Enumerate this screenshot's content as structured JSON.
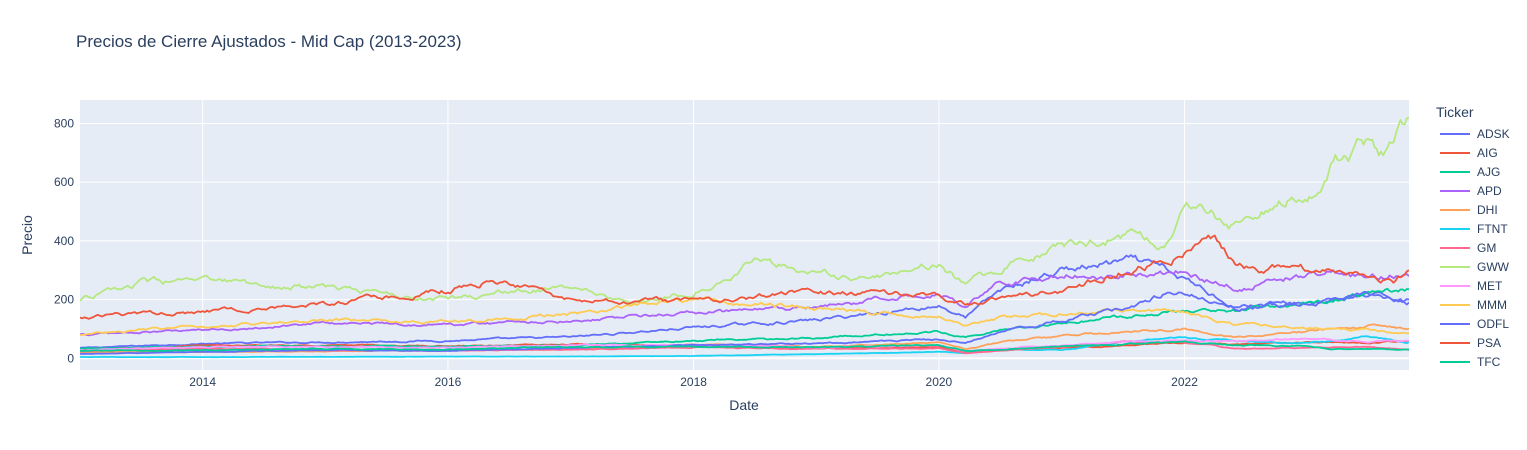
{
  "chart_data": {
    "type": "line",
    "title": "Precios de Cierre Ajustados - Mid Cap (2013-2023)",
    "xlabel": "Date",
    "ylabel": "Precio",
    "xlim": [
      "2013-01-01",
      "2023-10-31"
    ],
    "ylim": [
      -40,
      880
    ],
    "x_ticks": [
      {
        "date": "2014-01-01",
        "label": "2014"
      },
      {
        "date": "2016-01-01",
        "label": "2016"
      },
      {
        "date": "2018-01-01",
        "label": "2018"
      },
      {
        "date": "2020-01-01",
        "label": "2020"
      },
      {
        "date": "2022-01-01",
        "label": "2022"
      }
    ],
    "y_ticks": [
      0,
      200,
      400,
      600,
      800
    ],
    "grid": true,
    "legend_title": "Ticker",
    "legend_position": "right",
    "series": [
      {
        "name": "ADSK",
        "color": "#636efa",
        "x": [
          "2013-01-01",
          "2014-01-01",
          "2015-01-01",
          "2016-01-01",
          "2017-01-01",
          "2018-01-01",
          "2019-01-01",
          "2020-01-01",
          "2020-03-20",
          "2020-07-01",
          "2021-01-01",
          "2021-08-01",
          "2021-11-01",
          "2022-06-01",
          "2023-01-01",
          "2023-07-01",
          "2023-10-31"
        ],
        "y": [
          35,
          50,
          55,
          60,
          72,
          105,
          130,
          180,
          140,
          230,
          300,
          330,
          300,
          180,
          190,
          210,
          200
        ]
      },
      {
        "name": "AIG",
        "color": "#ef553b",
        "x": [
          "2013-01-01",
          "2014-01-01",
          "2015-01-01",
          "2016-01-01",
          "2017-01-01",
          "2018-01-01",
          "2019-01-01",
          "2020-01-01",
          "2020-03-20",
          "2020-07-01",
          "2021-01-01",
          "2021-07-01",
          "2022-01-01",
          "2022-06-01",
          "2023-01-01",
          "2023-07-01",
          "2023-10-31"
        ],
        "y": [
          30,
          42,
          45,
          42,
          48,
          46,
          34,
          40,
          18,
          26,
          35,
          42,
          52,
          45,
          55,
          52,
          60
        ]
      },
      {
        "name": "AJG",
        "color": "#00cc96",
        "x": [
          "2013-01-01",
          "2014-01-01",
          "2015-01-01",
          "2016-01-01",
          "2017-01-01",
          "2018-01-01",
          "2019-01-01",
          "2020-01-01",
          "2020-03-20",
          "2020-07-01",
          "2021-01-01",
          "2021-07-01",
          "2022-01-01",
          "2022-06-01",
          "2023-01-01",
          "2023-07-01",
          "2023-10-31"
        ],
        "y": [
          32,
          40,
          42,
          40,
          45,
          58,
          70,
          90,
          75,
          95,
          120,
          140,
          165,
          160,
          190,
          215,
          235
        ]
      },
      {
        "name": "APD",
        "color": "#ab63fa",
        "x": [
          "2013-01-01",
          "2014-01-01",
          "2015-01-01",
          "2016-01-01",
          "2017-01-01",
          "2018-01-01",
          "2019-01-01",
          "2020-01-01",
          "2020-03-20",
          "2020-07-01",
          "2021-01-01",
          "2021-07-01",
          "2022-01-01",
          "2022-06-01",
          "2023-01-01",
          "2023-07-01",
          "2023-10-31"
        ],
        "y": [
          80,
          95,
          120,
          115,
          130,
          155,
          170,
          230,
          180,
          260,
          280,
          285,
          300,
          240,
          290,
          285,
          280
        ]
      },
      {
        "name": "DHI",
        "color": "#ffa15a",
        "x": [
          "2013-01-01",
          "2014-01-01",
          "2015-01-01",
          "2016-01-01",
          "2017-01-01",
          "2018-01-01",
          "2019-01-01",
          "2020-01-01",
          "2020-03-20",
          "2020-07-01",
          "2021-01-01",
          "2021-07-01",
          "2022-01-01",
          "2022-06-01",
          "2023-01-01",
          "2023-07-01",
          "2023-10-31"
        ],
        "y": [
          20,
          22,
          24,
          28,
          30,
          48,
          40,
          55,
          32,
          55,
          75,
          90,
          100,
          70,
          90,
          110,
          100
        ]
      },
      {
        "name": "FTNT",
        "color": "#19d3f3",
        "x": [
          "2013-01-01",
          "2014-01-01",
          "2015-01-01",
          "2016-01-01",
          "2017-01-01",
          "2018-01-01",
          "2019-01-01",
          "2020-01-01",
          "2020-03-20",
          "2020-07-01",
          "2021-01-01",
          "2021-07-01",
          "2021-12-01",
          "2022-06-01",
          "2023-01-01",
          "2023-07-01",
          "2023-10-31"
        ],
        "y": [
          4,
          4,
          5,
          6,
          6,
          8,
          14,
          22,
          17,
          28,
          30,
          55,
          70,
          58,
          50,
          72,
          55
        ]
      },
      {
        "name": "GM",
        "color": "#ff6692",
        "x": [
          "2013-01-01",
          "2014-01-01",
          "2015-01-01",
          "2016-01-01",
          "2017-01-01",
          "2018-01-01",
          "2019-01-01",
          "2020-01-01",
          "2020-03-20",
          "2020-07-01",
          "2021-01-01",
          "2021-07-01",
          "2022-01-01",
          "2022-06-01",
          "2023-01-01",
          "2023-07-01",
          "2023-10-31"
        ],
        "y": [
          25,
          32,
          28,
          26,
          30,
          38,
          32,
          33,
          18,
          25,
          40,
          55,
          55,
          33,
          35,
          38,
          28
        ]
      },
      {
        "name": "GWW",
        "color": "#b6e880",
        "x": [
          "2013-01-01",
          "2013-07-01",
          "2014-01-01",
          "2015-01-01",
          "2016-01-01",
          "2016-07-01",
          "2017-01-01",
          "2017-07-01",
          "2018-01-01",
          "2018-07-01",
          "2019-01-01",
          "2019-07-01",
          "2020-01-01",
          "2020-03-20",
          "2020-07-01",
          "2021-01-01",
          "2021-07-01",
          "2021-11-01",
          "2022-01-01",
          "2022-06-01",
          "2023-01-01",
          "2023-04-01",
          "2023-07-01",
          "2023-08-15",
          "2023-10-31"
        ],
        "y": [
          200,
          255,
          260,
          240,
          200,
          230,
          240,
          180,
          230,
          330,
          290,
          280,
          330,
          250,
          310,
          380,
          420,
          400,
          510,
          450,
          570,
          670,
          740,
          690,
          820
        ]
      },
      {
        "name": "MET",
        "color": "#ff97ff",
        "x": [
          "2013-01-01",
          "2014-01-01",
          "2015-01-01",
          "2016-01-01",
          "2017-01-01",
          "2018-01-01",
          "2019-01-01",
          "2020-01-01",
          "2020-03-20",
          "2020-07-01",
          "2021-01-01",
          "2021-07-01",
          "2022-01-01",
          "2022-06-01",
          "2023-01-01",
          "2023-07-01",
          "2023-10-31"
        ],
        "y": [
          28,
          38,
          40,
          36,
          45,
          45,
          38,
          45,
          25,
          35,
          42,
          55,
          60,
          58,
          66,
          55,
          60
        ]
      },
      {
        "name": "MMM",
        "color": "#fecb52",
        "x": [
          "2013-01-01",
          "2014-01-01",
          "2015-01-01",
          "2016-01-01",
          "2017-01-01",
          "2018-01-01",
          "2019-01-01",
          "2020-01-01",
          "2020-03-20",
          "2020-07-01",
          "2021-01-01",
          "2021-07-01",
          "2022-01-01",
          "2022-06-01",
          "2023-01-01",
          "2023-07-01",
          "2023-10-31"
        ],
        "y": [
          80,
          110,
          130,
          125,
          150,
          200,
          170,
          140,
          115,
          135,
          150,
          165,
          160,
          115,
          105,
          95,
          85
        ]
      },
      {
        "name": "ODFL",
        "color": "#636efa",
        "x": [
          "2013-01-01",
          "2014-01-01",
          "2015-01-01",
          "2016-01-01",
          "2017-01-01",
          "2018-01-01",
          "2019-01-01",
          "2020-01-01",
          "2020-03-20",
          "2020-07-01",
          "2021-01-01",
          "2021-07-01",
          "2021-12-01",
          "2022-06-01",
          "2023-01-01",
          "2023-07-01",
          "2023-10-31"
        ],
        "y": [
          15,
          22,
          28,
          25,
          35,
          45,
          50,
          65,
          55,
          90,
          130,
          170,
          230,
          170,
          190,
          220,
          190
        ]
      },
      {
        "name": "PSA",
        "color": "#ef553b",
        "x": [
          "2013-01-01",
          "2014-01-01",
          "2015-01-01",
          "2016-01-01",
          "2016-05-01",
          "2017-01-01",
          "2018-01-01",
          "2019-01-01",
          "2020-01-01",
          "2020-03-20",
          "2020-07-01",
          "2021-01-01",
          "2021-07-01",
          "2022-01-01",
          "2022-04-01",
          "2022-06-01",
          "2023-01-01",
          "2023-07-01",
          "2023-09-15",
          "2023-10-31"
        ],
        "y": [
          140,
          160,
          185,
          230,
          265,
          200,
          195,
          225,
          210,
          185,
          200,
          230,
          300,
          360,
          410,
          320,
          300,
          290,
          260,
          300
        ]
      },
      {
        "name": "TFC",
        "color": "#00cc96",
        "x": [
          "2013-01-01",
          "2014-01-01",
          "2015-01-01",
          "2016-01-01",
          "2017-01-01",
          "2018-01-01",
          "2019-01-01",
          "2020-01-01",
          "2020-03-20",
          "2020-07-01",
          "2021-01-01",
          "2021-07-01",
          "2022-01-01",
          "2022-06-01",
          "2023-01-01",
          "2023-03-15",
          "2023-07-01",
          "2023-10-31"
        ],
        "y": [
          25,
          28,
          32,
          30,
          38,
          40,
          38,
          45,
          25,
          30,
          40,
          48,
          55,
          45,
          40,
          30,
          32,
          30
        ]
      }
    ]
  }
}
